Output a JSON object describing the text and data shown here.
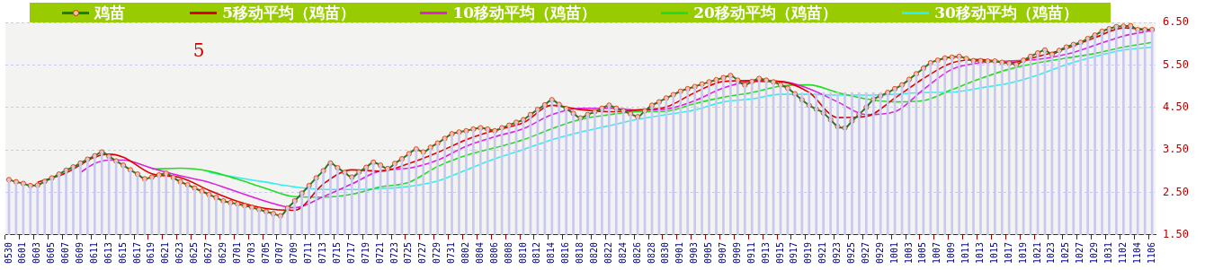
{
  "chart_data": {
    "type": "line",
    "categories": [
      "0530",
      null,
      "0601",
      null,
      "0603",
      null,
      "0605",
      null,
      "0607",
      null,
      "0609",
      null,
      "0611",
      null,
      "0613",
      null,
      "0615",
      null,
      "0617",
      null,
      "0619",
      null,
      "0621",
      null,
      "0623",
      null,
      "0625",
      null,
      "0627",
      null,
      "0629",
      null,
      "0701",
      null,
      "0703",
      null,
      "0705",
      null,
      "0707",
      null,
      "0709",
      null,
      "0711",
      null,
      "0713",
      null,
      "0715",
      null,
      "0717",
      null,
      "0719",
      null,
      "0721",
      null,
      "0723",
      null,
      "0725",
      null,
      "0727",
      null,
      "0729",
      null,
      "0731",
      null,
      "0802",
      null,
      "0804",
      null,
      "0806",
      null,
      "0808",
      null,
      "0810",
      null,
      "0812",
      null,
      "0814",
      null,
      "0816",
      null,
      "0818",
      null,
      "0820",
      null,
      "0822",
      null,
      "0824",
      null,
      "0826",
      null,
      "0828",
      null,
      "0830",
      null,
      "0901",
      null,
      "0903",
      null,
      "0905",
      null,
      "0907",
      null,
      "0909",
      null,
      "0911",
      null,
      "0913",
      null,
      "0915",
      null,
      "0917",
      null,
      "0919",
      null,
      "0921",
      null,
      "0923",
      null,
      "0925",
      null,
      "0927",
      null,
      "0929",
      null,
      "1001",
      null,
      "1003",
      null,
      "1005",
      null,
      "1007",
      null,
      "1009",
      null,
      "1011",
      null,
      "1013",
      null,
      "1015",
      null,
      "1017",
      null,
      "1019",
      null,
      "1021",
      null,
      "1023",
      null,
      "1025",
      null,
      "1027",
      null,
      "1029",
      null,
      "1031",
      null,
      "1102",
      null,
      "1104",
      null,
      "1106"
    ],
    "series": [
      {
        "name": "鸡苗",
        "marker": "circle",
        "color": "#1e7b1e",
        "values": [
          2.8,
          2.75,
          2.71,
          2.66,
          2.67,
          2.76,
          2.84,
          2.93,
          3.02,
          3.1,
          3.19,
          3.28,
          3.36,
          3.45,
          3.35,
          3.24,
          3.14,
          3.03,
          2.93,
          2.82,
          2.86,
          2.91,
          2.95,
          2.85,
          2.75,
          2.68,
          2.6,
          2.53,
          2.45,
          2.38,
          2.3,
          2.26,
          2.23,
          2.19,
          2.15,
          2.1,
          2.05,
          2.0,
          1.95,
          2.13,
          2.3,
          2.48,
          2.66,
          2.84,
          3.01,
          3.19,
          3.08,
          2.97,
          2.86,
          2.98,
          3.09,
          3.21,
          3.14,
          3.06,
          3.18,
          3.29,
          3.41,
          3.52,
          3.45,
          3.56,
          3.66,
          3.77,
          3.88,
          3.92,
          3.95,
          3.99,
          4.02,
          3.99,
          3.95,
          4.02,
          4.08,
          4.15,
          4.21,
          4.33,
          4.45,
          4.56,
          4.68,
          4.57,
          4.47,
          4.36,
          4.25,
          4.33,
          4.4,
          4.48,
          4.55,
          4.48,
          4.42,
          4.35,
          4.28,
          4.42,
          4.55,
          4.63,
          4.72,
          4.8,
          4.88,
          4.94,
          4.99,
          5.05,
          5.1,
          5.15,
          5.2,
          5.25,
          5.14,
          5.03,
          5.11,
          5.18,
          5.14,
          5.1,
          5.03,
          4.95,
          4.82,
          4.68,
          4.55,
          4.46,
          4.37,
          4.21,
          4.05,
          4.02,
          4.18,
          4.34,
          4.5,
          4.69,
          4.77,
          4.85,
          4.94,
          5.03,
          5.16,
          5.29,
          5.42,
          5.55,
          5.61,
          5.66,
          5.68,
          5.7,
          5.65,
          5.6,
          5.6,
          5.59,
          5.59,
          5.56,
          5.54,
          5.51,
          5.61,
          5.7,
          5.78,
          5.85,
          5.75,
          5.84,
          5.92,
          5.98,
          6.03,
          6.12,
          6.2,
          6.29,
          6.35,
          6.4,
          6.41,
          6.42,
          6.33,
          6.33,
          6.33
        ]
      },
      {
        "name": "5移动平均（鸡苗）",
        "marker": "none",
        "color": "#e00000",
        "values": [
          null,
          null,
          null,
          null,
          2.74,
          null,
          null,
          null,
          2.96,
          null,
          null,
          null,
          3.33,
          null,
          3.4,
          null,
          3.33,
          null,
          null,
          null,
          2.94,
          null,
          null,
          null,
          2.85,
          null,
          null,
          null,
          2.55,
          null,
          null,
          null,
          2.29,
          null,
          null,
          null,
          2.12,
          null,
          null,
          null,
          2.08,
          null,
          null,
          null,
          2.7,
          null,
          null,
          null,
          3.03,
          null,
          null,
          null,
          3.0,
          null,
          null,
          null,
          3.18,
          null,
          null,
          null,
          3.44,
          null,
          null,
          null,
          3.74,
          null,
          null,
          null,
          3.96,
          null,
          null,
          null,
          4.14,
          null,
          null,
          null,
          4.55,
          null,
          null,
          null,
          4.45,
          null,
          null,
          null,
          4.4,
          null,
          null,
          null,
          4.44,
          null,
          null,
          null,
          4.51,
          null,
          null,
          null,
          4.85,
          null,
          null,
          null,
          5.11,
          null,
          null,
          null,
          5.13,
          null,
          null,
          null,
          5.11,
          null,
          null,
          null,
          4.85,
          null,
          null,
          null,
          4.26,
          null,
          null,
          null,
          4.29,
          null,
          null,
          null,
          4.72,
          null,
          null,
          null,
          5.18,
          null,
          null,
          null,
          5.55,
          null,
          null,
          null,
          5.63,
          null,
          null,
          null,
          5.55,
          null,
          null,
          null,
          5.7,
          null,
          null,
          null,
          5.89,
          null,
          null,
          null,
          6.14,
          null,
          null,
          null,
          6.37,
          null,
          null,
          null,
          6.33
        ]
      },
      {
        "name": "10移动平均（鸡苗）",
        "marker": "none",
        "color": "#e020e0",
        "values": [
          null,
          null,
          null,
          null,
          null,
          null,
          null,
          null,
          null,
          null,
          2.97,
          null,
          3.18,
          null,
          3.26,
          null,
          3.26,
          null,
          null,
          null,
          3.07,
          null,
          null,
          null,
          2.89,
          null,
          null,
          null,
          2.74,
          null,
          null,
          null,
          2.51,
          null,
          null,
          null,
          2.29,
          null,
          null,
          null,
          2.14,
          null,
          null,
          null,
          2.4,
          null,
          null,
          null,
          2.7,
          null,
          null,
          null,
          3.01,
          null,
          null,
          null,
          3.07,
          null,
          null,
          null,
          3.26,
          null,
          null,
          null,
          3.59,
          null,
          null,
          null,
          3.81,
          null,
          null,
          null,
          4.0,
          null,
          null,
          null,
          4.33,
          null,
          null,
          null,
          4.48,
          null,
          null,
          null,
          4.48,
          null,
          null,
          null,
          4.44,
          null,
          null,
          null,
          4.46,
          null,
          null,
          null,
          4.66,
          null,
          null,
          null,
          4.96,
          null,
          null,
          null,
          5.11,
          null,
          null,
          null,
          5.11,
          null,
          null,
          null,
          4.94,
          null,
          null,
          null,
          4.63,
          null,
          null,
          null,
          4.33,
          null,
          null,
          null,
          4.4,
          null,
          null,
          null,
          4.92,
          null,
          null,
          null,
          5.4,
          null,
          null,
          null,
          5.55,
          null,
          null,
          null,
          5.59,
          null,
          null,
          null,
          5.63,
          null,
          null,
          null,
          5.75,
          null,
          null,
          null,
          5.96,
          null,
          null,
          null,
          6.18,
          null,
          null,
          null,
          6.31
        ]
      },
      {
        "name": "20移动平均（鸡苗）",
        "marker": "none",
        "color": "#22dd22",
        "values": [
          null,
          null,
          null,
          null,
          null,
          null,
          null,
          null,
          null,
          null,
          null,
          null,
          null,
          null,
          null,
          null,
          null,
          null,
          null,
          null,
          3.05,
          null,
          null,
          null,
          3.07,
          null,
          null,
          null,
          3.0,
          null,
          null,
          null,
          2.81,
          null,
          null,
          null,
          2.59,
          null,
          null,
          null,
          2.4,
          null,
          null,
          null,
          2.39,
          null,
          null,
          null,
          2.46,
          null,
          null,
          null,
          2.63,
          null,
          null,
          null,
          2.74,
          null,
          null,
          null,
          3.11,
          null,
          null,
          null,
          3.37,
          null,
          null,
          null,
          3.55,
          null,
          null,
          null,
          3.74,
          null,
          null,
          null,
          4.0,
          null,
          null,
          null,
          4.22,
          null,
          null,
          null,
          4.33,
          null,
          null,
          null,
          4.4,
          null,
          null,
          null,
          4.41,
          null,
          null,
          null,
          4.59,
          null,
          null,
          null,
          4.74,
          null,
          null,
          null,
          4.85,
          null,
          null,
          null,
          5.0,
          null,
          null,
          null,
          5.03,
          null,
          null,
          null,
          4.85,
          null,
          null,
          null,
          4.7,
          null,
          null,
          null,
          4.63,
          null,
          null,
          null,
          4.66,
          null,
          null,
          null,
          4.92,
          null,
          null,
          null,
          5.18,
          null,
          null,
          null,
          5.4,
          null,
          null,
          null,
          5.55,
          null,
          null,
          null,
          5.66,
          null,
          null,
          null,
          5.77,
          null,
          null,
          null,
          5.92,
          null,
          null,
          null,
          6.03
        ]
      },
      {
        "name": "30移动平均（鸡苗）",
        "marker": "none",
        "color": "#33eeee",
        "values": [
          null,
          null,
          null,
          null,
          null,
          null,
          null,
          null,
          null,
          null,
          null,
          null,
          null,
          null,
          null,
          null,
          null,
          null,
          null,
          null,
          null,
          null,
          null,
          null,
          null,
          null,
          null,
          null,
          2.97,
          null,
          null,
          null,
          2.85,
          null,
          null,
          null,
          2.74,
          null,
          null,
          null,
          2.63,
          null,
          null,
          null,
          2.57,
          null,
          null,
          null,
          2.57,
          null,
          null,
          null,
          2.59,
          null,
          null,
          null,
          2.64,
          null,
          null,
          null,
          2.77,
          null,
          null,
          null,
          3.03,
          null,
          null,
          null,
          3.29,
          null,
          null,
          null,
          3.51,
          null,
          null,
          null,
          3.74,
          null,
          null,
          null,
          3.92,
          null,
          null,
          null,
          4.07,
          null,
          null,
          null,
          4.22,
          null,
          null,
          null,
          4.33,
          null,
          null,
          null,
          4.44,
          null,
          null,
          null,
          4.63,
          null,
          null,
          null,
          4.7,
          null,
          null,
          null,
          4.81,
          null,
          null,
          null,
          4.81,
          null,
          null,
          null,
          4.79,
          null,
          null,
          null,
          4.79,
          null,
          null,
          null,
          4.81,
          null,
          null,
          null,
          4.85,
          null,
          null,
          null,
          4.86,
          null,
          null,
          null,
          4.96,
          null,
          null,
          null,
          5.07,
          null,
          null,
          null,
          5.26,
          null,
          null,
          null,
          5.51,
          null,
          null,
          null,
          5.7,
          null,
          null,
          null,
          5.85,
          null,
          null,
          null,
          5.92
        ]
      },
      {
        "type": "bar",
        "color": "#c8c8f0",
        "values": [
          2.8,
          2.75,
          2.71,
          2.66,
          2.67,
          2.76,
          2.84,
          2.93,
          3.02,
          3.1,
          3.19,
          3.28,
          3.36,
          3.45,
          3.35,
          3.24,
          3.14,
          3.03,
          2.93,
          2.82,
          2.86,
          2.91,
          2.95,
          2.85,
          2.75,
          2.68,
          2.6,
          2.53,
          2.45,
          2.38,
          2.3,
          2.26,
          2.23,
          2.19,
          2.15,
          2.1,
          2.05,
          2.0,
          1.95,
          2.13,
          2.3,
          2.48,
          2.66,
          2.84,
          3.01,
          3.19,
          3.08,
          2.97,
          2.86,
          2.98,
          3.09,
          3.21,
          3.14,
          3.06,
          3.18,
          3.29,
          3.41,
          3.52,
          3.45,
          3.56,
          3.66,
          3.77,
          3.88,
          3.92,
          3.95,
          3.99,
          4.02,
          3.99,
          3.95,
          4.02,
          4.08,
          4.15,
          4.21,
          4.33,
          4.45,
          4.56,
          4.68,
          4.57,
          4.47,
          4.36,
          4.25,
          4.33,
          4.4,
          4.48,
          4.55,
          4.48,
          4.42,
          4.35,
          4.28,
          4.42,
          4.55,
          4.63,
          4.72,
          4.8,
          4.88,
          4.94,
          4.99,
          5.05,
          5.1,
          5.15,
          5.2,
          5.25,
          5.14,
          5.03,
          5.11,
          5.18,
          5.14,
          5.1,
          5.03,
          4.95,
          4.85,
          4.85,
          4.85,
          4.85,
          4.85,
          4.85,
          4.85,
          4.85,
          4.85,
          4.85,
          4.85,
          4.85,
          4.85,
          4.85,
          4.94,
          5.03,
          5.16,
          5.29,
          5.42,
          5.55,
          5.61,
          5.66,
          5.68,
          5.7,
          5.65,
          5.6,
          5.6,
          5.59,
          5.59,
          5.56,
          5.54,
          5.51,
          5.61,
          5.7,
          5.78,
          5.85,
          5.75,
          5.84,
          5.92,
          5.98,
          6.03,
          6.12,
          6.2,
          6.29,
          6.35,
          6.4,
          6.41,
          6.42,
          6.33,
          6.33,
          6.33
        ]
      }
    ],
    "ylim": [
      1.5,
      6.5
    ],
    "yticks": [
      {
        "value": 1.5,
        "label": "1.50"
      },
      {
        "value": 2.5,
        "label": "2.50"
      },
      {
        "value": 3.5,
        "label": "3.50"
      },
      {
        "value": 4.5,
        "label": "4.50"
      },
      {
        "value": 5.5,
        "label": "5.50"
      },
      {
        "value": 6.5,
        "label": "6.50"
      }
    ],
    "grid": "y",
    "legend": "top",
    "annotations": [
      "5"
    ]
  }
}
